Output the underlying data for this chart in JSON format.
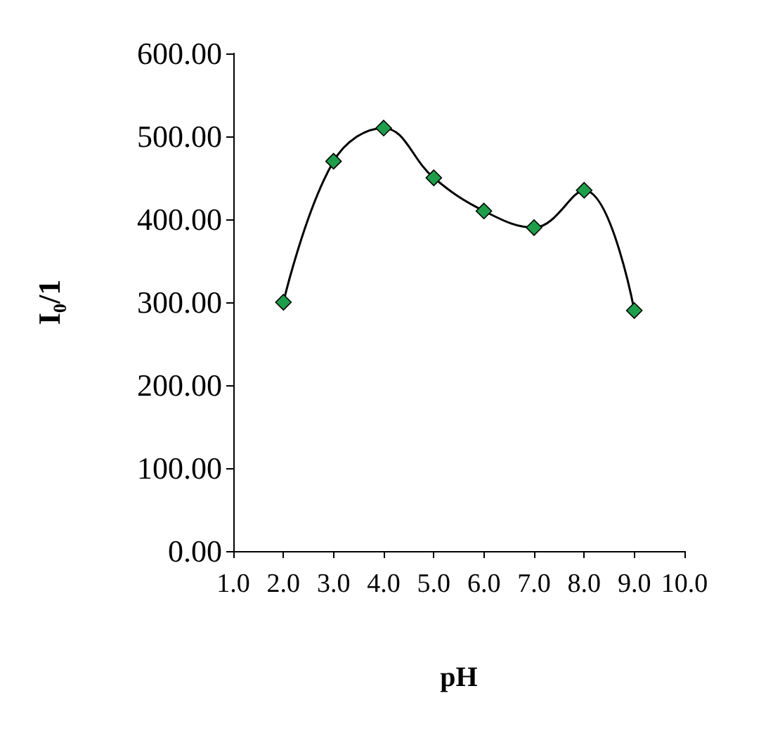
{
  "chart_data": {
    "type": "line",
    "xlabel": "pH",
    "ylabel": "I₀/1",
    "x": [
      2,
      3,
      4,
      5,
      6,
      7,
      8,
      9
    ],
    "series": [
      {
        "color": "#1e9e4a",
        "values": [
          300,
          470,
          510,
          450,
          410,
          390,
          435,
          290
        ]
      }
    ],
    "xlim": [
      1,
      10
    ],
    "xticks": [
      {
        "value": 1,
        "label": "1.0"
      },
      {
        "value": 2,
        "label": "2.0"
      },
      {
        "value": 3,
        "label": "3.0"
      },
      {
        "value": 4,
        "label": "4.0"
      },
      {
        "value": 5,
        "label": "5.0"
      },
      {
        "value": 6,
        "label": "6.0"
      },
      {
        "value": 7,
        "label": "7.0"
      },
      {
        "value": 8,
        "label": "8.0"
      },
      {
        "value": 9,
        "label": "9.0"
      },
      {
        "value": 10,
        "label": "10.0"
      }
    ],
    "ylim": [
      0,
      600
    ],
    "yticks": [
      {
        "value": 0,
        "label": "0.00"
      },
      {
        "value": 100,
        "label": "100.00"
      },
      {
        "value": 200,
        "label": "200.00"
      },
      {
        "value": 300,
        "label": "300.00"
      },
      {
        "value": 400,
        "label": "400.00"
      },
      {
        "value": 500,
        "label": "500.00"
      },
      {
        "value": 600,
        "label": "600.00"
      }
    ],
    "marker": "diamond",
    "grid": false
  }
}
